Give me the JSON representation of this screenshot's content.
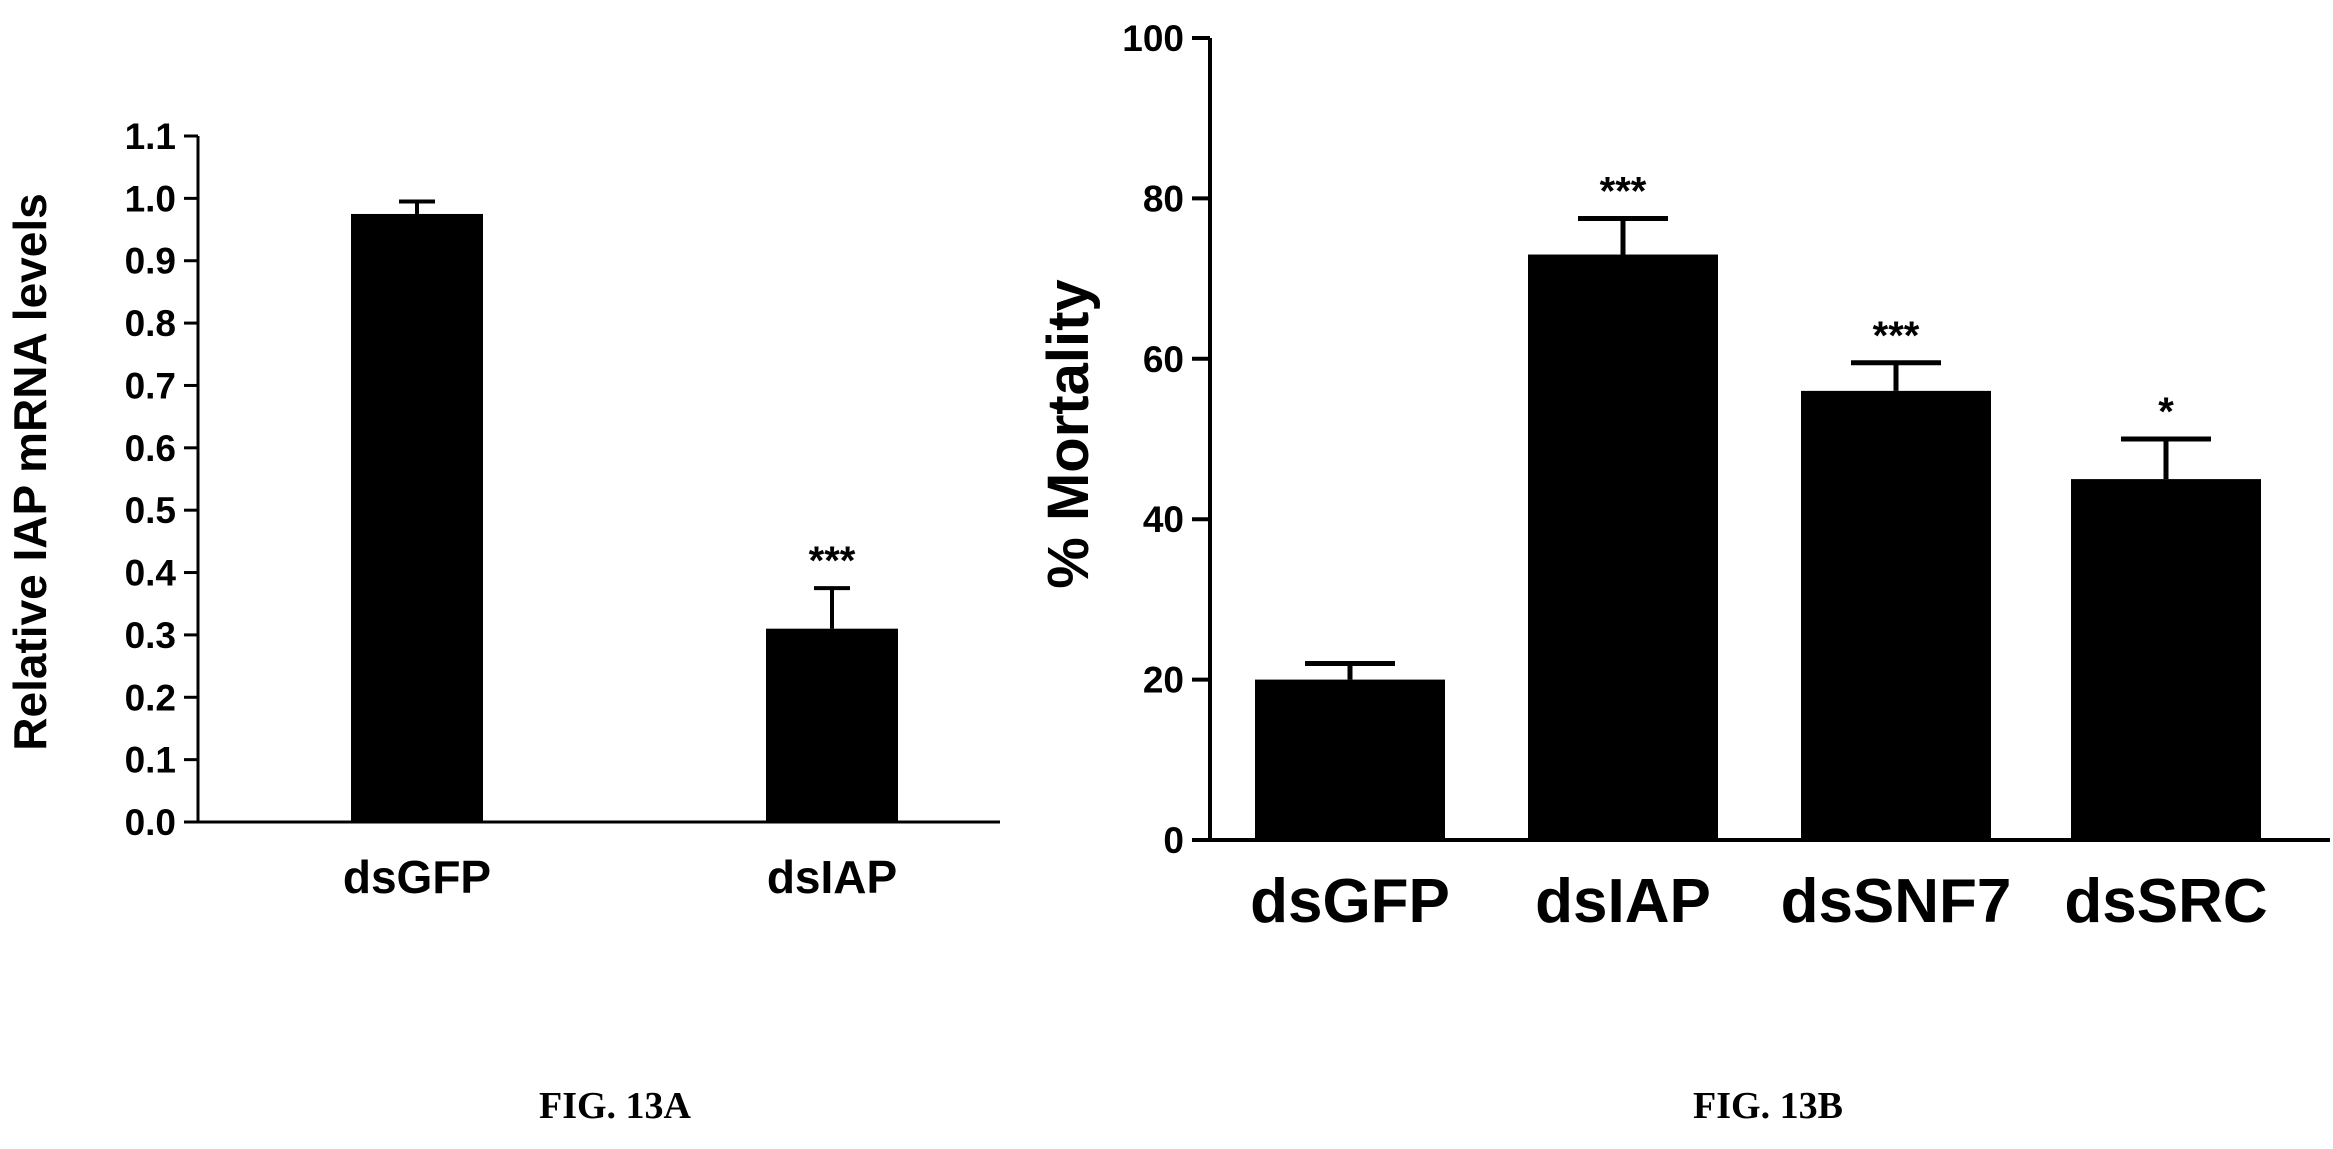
{
  "chart_data": [
    {
      "type": "bar",
      "caption": "FIG. 13A",
      "ylabel": "Relative IAP mRNA levels",
      "xlabel": "",
      "categories": [
        "dsGFP",
        "dsIAP"
      ],
      "values": [
        0.975,
        0.31
      ],
      "errors": [
        0.02,
        0.065
      ],
      "significance": [
        "",
        "***"
      ],
      "ylim": [
        0,
        1.1
      ],
      "yticks": [
        "0.0",
        "0.1",
        "0.2",
        "0.3",
        "0.4",
        "0.5",
        "0.6",
        "0.7",
        "0.8",
        "0.9",
        "1.0",
        "1.1"
      ],
      "bar_color": "#000000",
      "grid": false,
      "legend": "none"
    },
    {
      "type": "bar",
      "caption": "FIG. 13B",
      "ylabel": "% Mortality",
      "xlabel": "",
      "categories": [
        "dsGFP",
        "dsIAP",
        "dsSNF7",
        "dsSRC"
      ],
      "values": [
        20,
        73,
        56,
        45
      ],
      "errors": [
        2,
        4.5,
        3.5,
        5
      ],
      "significance": [
        "",
        "***",
        "***",
        "*"
      ],
      "ylim": [
        0,
        100
      ],
      "yticks": [
        "0",
        "20",
        "40",
        "60",
        "80",
        "100"
      ],
      "bar_color": "#000000",
      "grid": false,
      "legend": "none"
    }
  ]
}
